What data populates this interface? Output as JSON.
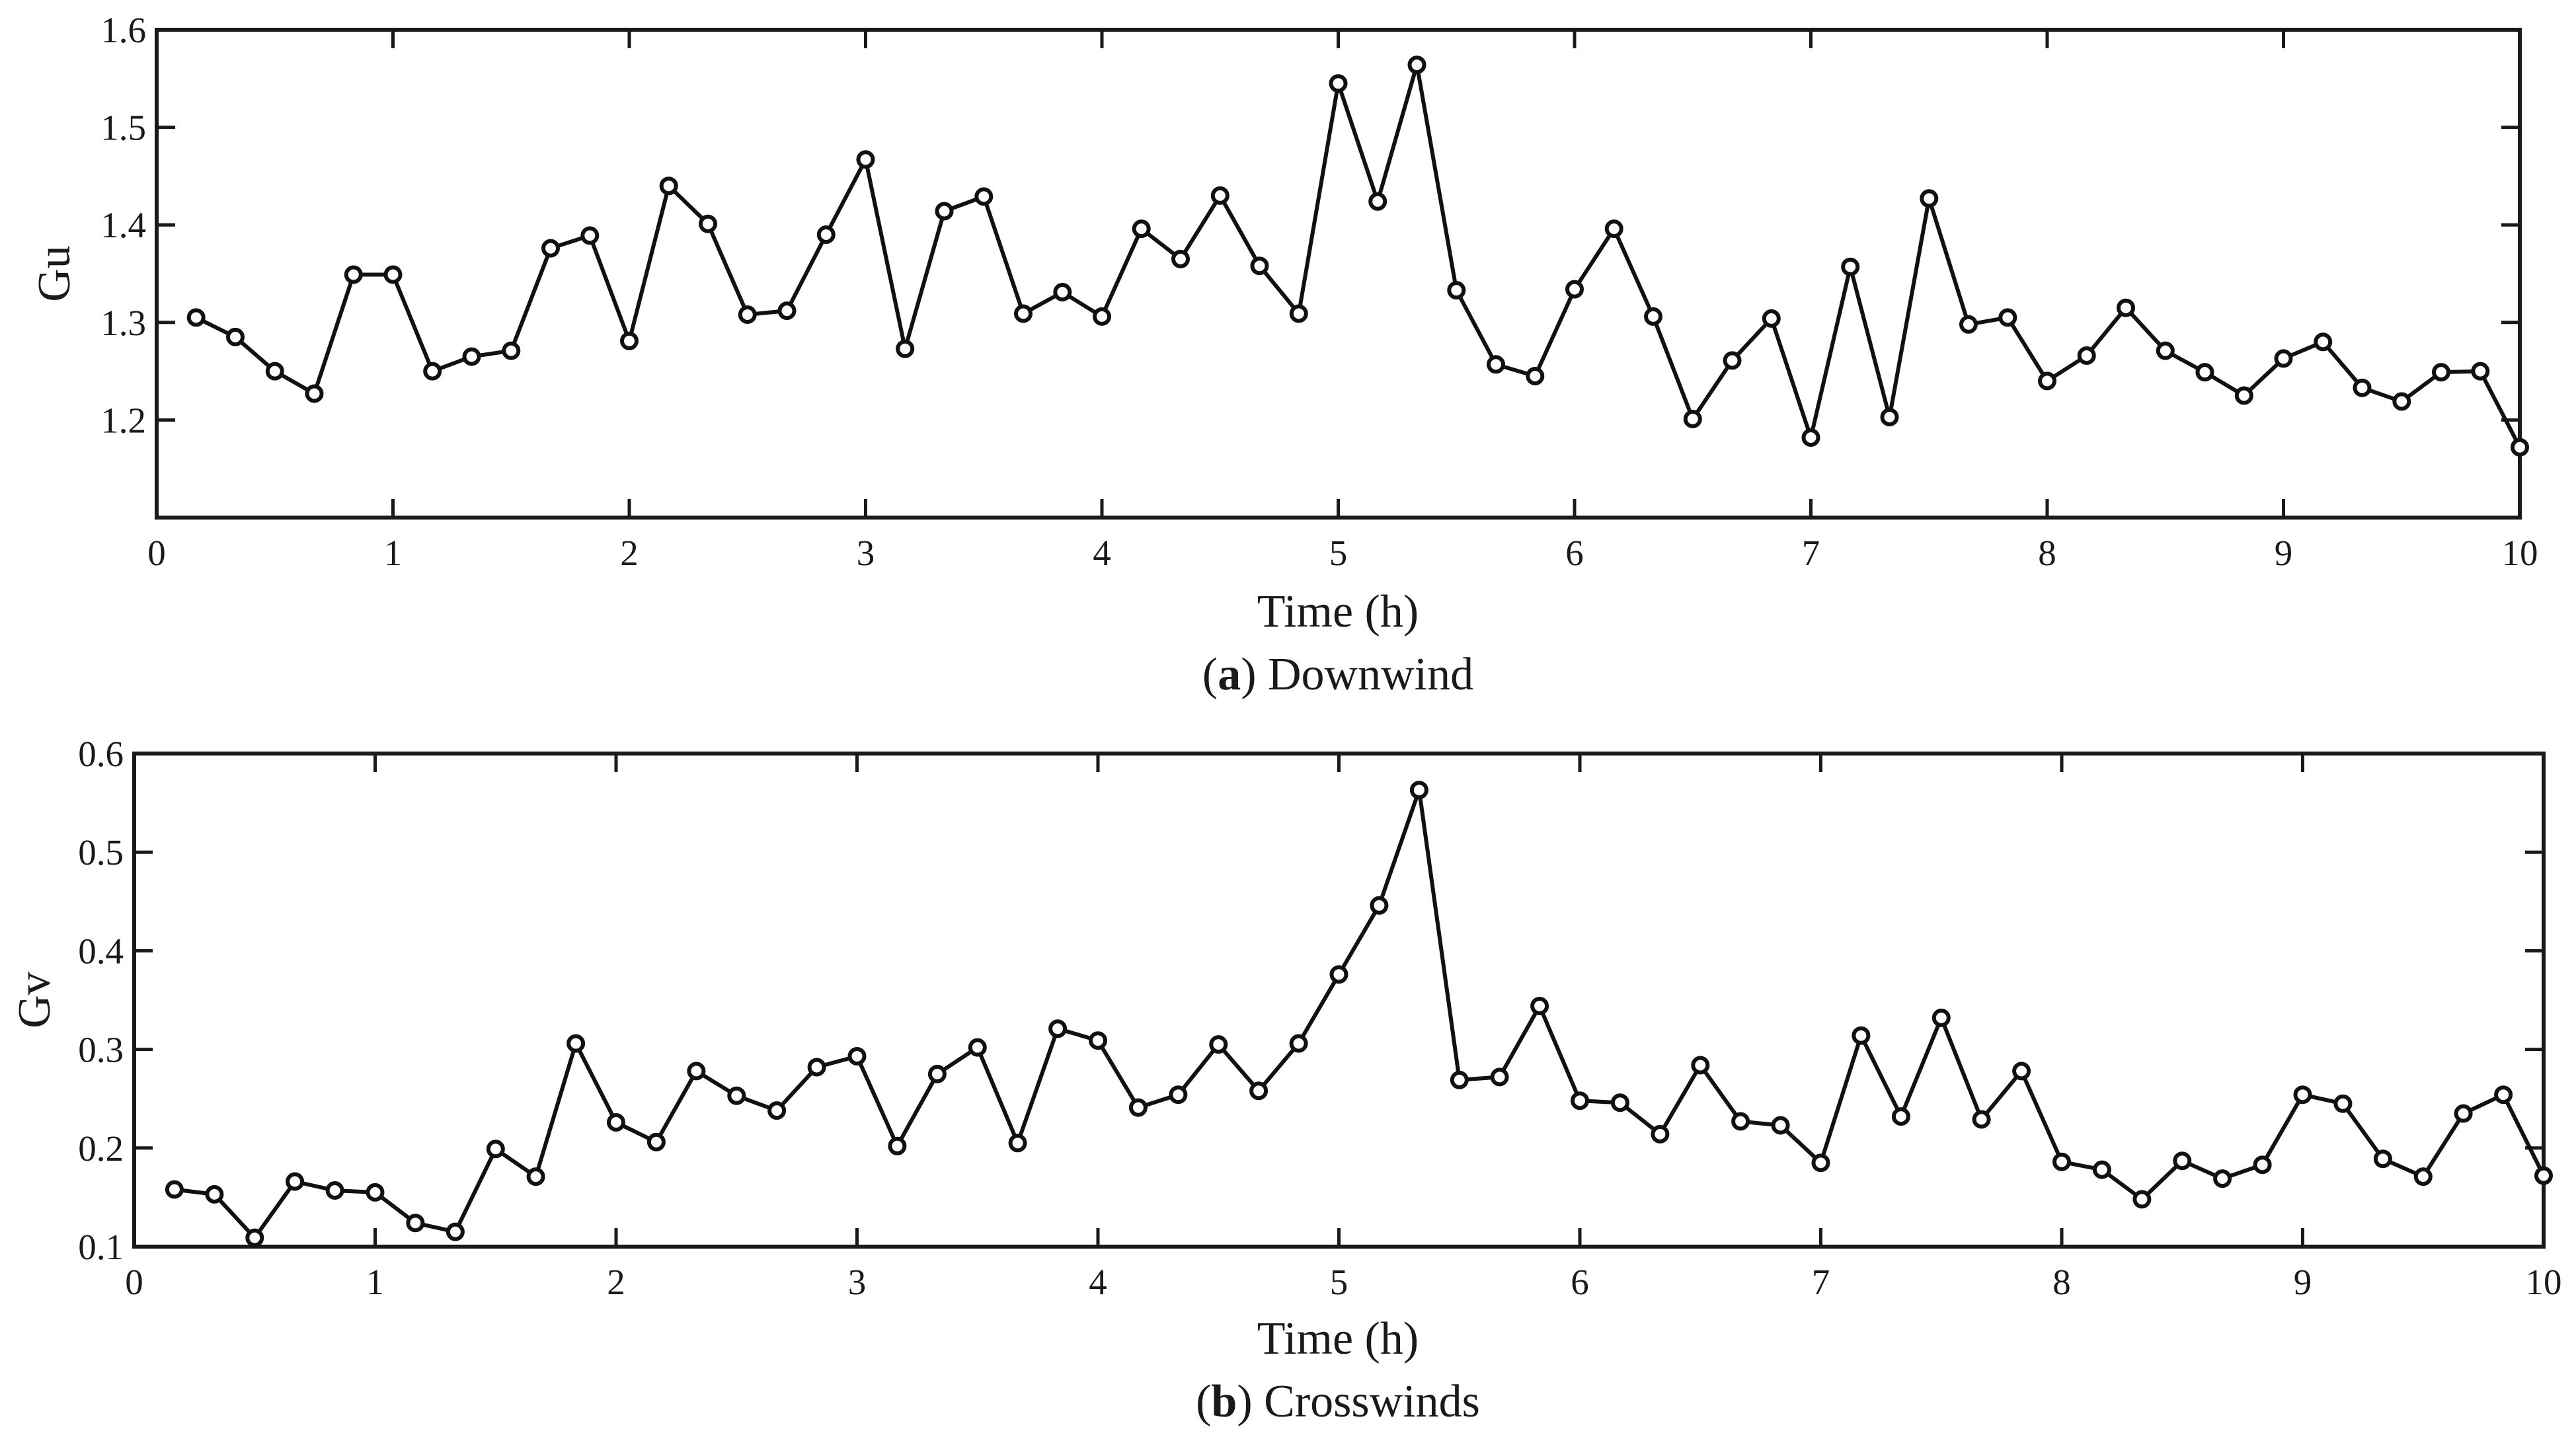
{
  "figure": {
    "subplot_a": {
      "caption_letter": "a",
      "caption_text": "Downwind",
      "ylabel": "Gu",
      "xlabel": "Time (h)"
    },
    "subplot_b": {
      "caption_letter": "b",
      "caption_text": "Crosswinds",
      "ylabel": "Gv",
      "xlabel": "Time (h)"
    }
  },
  "chart_data": [
    {
      "type": "line",
      "title": "(a) Downwind",
      "xlabel": "Time (h)",
      "ylabel": "Gu",
      "xlim": [
        0,
        10
      ],
      "ylim": [
        1.1,
        1.6
      ],
      "xticks": [
        "0",
        "1",
        "2",
        "3",
        "4",
        "5",
        "6",
        "7",
        "8",
        "9",
        "10"
      ],
      "yticks": [
        "1.2",
        "1.3",
        "1.4",
        "1.5",
        "1.6"
      ],
      "marker": "circle",
      "color": "#111111",
      "x": [
        0.167,
        0.333,
        0.5,
        0.667,
        0.833,
        1.0,
        1.167,
        1.333,
        1.5,
        1.667,
        1.833,
        2.0,
        2.167,
        2.333,
        2.5,
        2.667,
        2.833,
        3.0,
        3.167,
        3.333,
        3.5,
        3.667,
        3.833,
        4.0,
        4.167,
        4.333,
        4.5,
        4.667,
        4.833,
        5.0,
        5.167,
        5.333,
        5.5,
        5.667,
        5.833,
        6.0,
        6.167,
        6.333,
        6.5,
        6.667,
        6.833,
        7.0,
        7.167,
        7.333,
        7.5,
        7.667,
        7.833,
        8.0,
        8.167,
        8.333,
        8.5,
        8.667,
        8.833,
        9.0,
        9.167,
        9.333,
        9.5,
        9.667,
        9.833,
        10.0
      ],
      "values": [
        1.305,
        1.285,
        1.25,
        1.227,
        1.349,
        1.349,
        1.25,
        1.265,
        1.271,
        1.376,
        1.389,
        1.281,
        1.44,
        1.401,
        1.308,
        1.312,
        1.39,
        1.467,
        1.273,
        1.414,
        1.429,
        1.309,
        1.331,
        1.306,
        1.396,
        1.365,
        1.43,
        1.358,
        1.309,
        1.545,
        1.424,
        1.564,
        1.333,
        1.257,
        1.245,
        1.334,
        1.396,
        1.306,
        1.201,
        1.261,
        1.304,
        1.182,
        1.357,
        1.203,
        1.427,
        1.298,
        1.305,
        1.24,
        1.266,
        1.315,
        1.271,
        1.249,
        1.225,
        1.263,
        1.28,
        1.233,
        1.219,
        1.249,
        1.25,
        1.172
      ]
    },
    {
      "type": "line",
      "title": "(b) Crosswinds",
      "xlabel": "Time (h)",
      "ylabel": "Gv",
      "xlim": [
        0,
        10
      ],
      "ylim": [
        0.1,
        0.6
      ],
      "xticks": [
        "0",
        "1",
        "2",
        "3",
        "4",
        "5",
        "6",
        "7",
        "8",
        "9",
        "10"
      ],
      "yticks": [
        "0.1",
        "0.2",
        "0.3",
        "0.4",
        "0.5",
        "0.6"
      ],
      "marker": "circle",
      "color": "#111111",
      "x": [
        0.167,
        0.333,
        0.5,
        0.667,
        0.833,
        1.0,
        1.167,
        1.333,
        1.5,
        1.667,
        1.833,
        2.0,
        2.167,
        2.333,
        2.5,
        2.667,
        2.833,
        3.0,
        3.167,
        3.333,
        3.5,
        3.667,
        3.833,
        4.0,
        4.167,
        4.333,
        4.5,
        4.667,
        4.833,
        5.0,
        5.167,
        5.333,
        5.5,
        5.667,
        5.833,
        6.0,
        6.167,
        6.333,
        6.5,
        6.667,
        6.833,
        7.0,
        7.167,
        7.333,
        7.5,
        7.667,
        7.833,
        8.0,
        8.167,
        8.333,
        8.5,
        8.667,
        8.833,
        9.0,
        9.167,
        9.333,
        9.5,
        9.667,
        9.833,
        10.0
      ],
      "values": [
        0.158,
        0.153,
        0.109,
        0.166,
        0.157,
        0.155,
        0.124,
        0.115,
        0.199,
        0.171,
        0.306,
        0.226,
        0.206,
        0.278,
        0.253,
        0.238,
        0.282,
        0.293,
        0.202,
        0.275,
        0.302,
        0.205,
        0.321,
        0.309,
        0.241,
        0.254,
        0.305,
        0.258,
        0.306,
        0.376,
        0.446,
        0.563,
        0.269,
        0.272,
        0.344,
        0.248,
        0.246,
        0.214,
        0.284,
        0.227,
        0.223,
        0.185,
        0.314,
        0.232,
        0.332,
        0.229,
        0.278,
        0.186,
        0.178,
        0.148,
        0.187,
        0.169,
        0.183,
        0.254,
        0.245,
        0.189,
        0.171,
        0.235,
        0.254,
        0.172
      ]
    }
  ]
}
